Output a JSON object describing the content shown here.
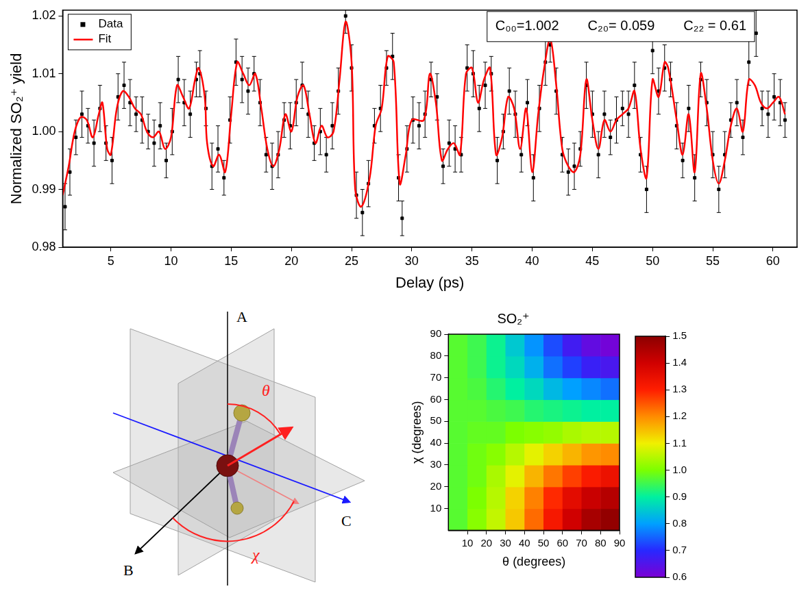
{
  "chart_data": [
    {
      "type": "scatter",
      "x_label": "Delay (ps)",
      "y_label": "Normalized SO₂⁺ yield",
      "xlim": [
        1,
        62
      ],
      "xticks": [
        5,
        10,
        15,
        20,
        25,
        30,
        35,
        40,
        45,
        50,
        55,
        60
      ],
      "ylim": [
        0.98,
        1.021
      ],
      "yticks": [
        0.98,
        0.99,
        {
          "value": 1,
          "label": "1.00"
        },
        1.01,
        1.02
      ],
      "grid": false,
      "legend": "upper left",
      "annotations": [
        "C₀₀=1.002",
        "C₂₀= 0.059",
        "C₂₂ = 0.61"
      ],
      "series": [
        {
          "name": "Data",
          "color": "#000000",
          "marker": "square",
          "x": [
            1.2,
            1.6,
            2.1,
            2.6,
            3.1,
            3.6,
            4.1,
            4.6,
            5.1,
            5.6,
            6.1,
            6.6,
            7.1,
            7.6,
            8.1,
            8.6,
            9.1,
            9.6,
            10.1,
            10.6,
            11.1,
            11.6,
            12.1,
            12.4,
            12.9,
            13.4,
            13.9,
            14.4,
            14.9,
            15.4,
            15.9,
            16.4,
            16.9,
            17.4,
            17.9,
            18.4,
            18.9,
            19.4,
            19.9,
            20.4,
            20.9,
            21.4,
            21.9,
            22.4,
            22.9,
            23.4,
            23.9,
            24.5,
            25.0,
            25.4,
            25.9,
            26.4,
            26.9,
            27.4,
            27.9,
            28.4,
            28.9,
            29.2,
            29.6,
            30.1,
            30.6,
            31.1,
            31.6,
            32.1,
            32.6,
            33.1,
            33.6,
            34.1,
            34.6,
            35.1,
            35.6,
            36.1,
            36.6,
            37.1,
            37.6,
            38.1,
            38.6,
            39.1,
            39.6,
            40.1,
            40.6,
            41.1,
            41.5,
            42.0,
            42.5,
            43.0,
            43.5,
            44.0,
            44.5,
            45.0,
            45.5,
            46.0,
            46.5,
            47.0,
            47.5,
            48.0,
            48.5,
            49.0,
            49.5,
            50.0,
            50.5,
            51.0,
            51.5,
            52.0,
            52.5,
            53.0,
            53.5,
            54.0,
            54.5,
            55.0,
            55.5,
            56.0,
            56.5,
            57.0,
            57.5,
            58.0,
            58.6,
            59.1,
            59.6,
            60.1,
            60.6,
            61.0
          ],
          "values": [
            0.987,
            0.993,
            0.999,
            1.003,
            1.001,
            0.998,
            1.004,
            0.998,
            0.995,
            1.006,
            1.008,
            1.005,
            1.003,
            1.002,
            1.0,
            0.998,
            1.001,
            0.995,
            1.0,
            1.009,
            1.005,
            1.003,
            1.009,
            1.01,
            1.004,
            0.994,
            0.997,
            0.992,
            1.002,
            1.012,
            1.009,
            1.007,
            1.01,
            1.005,
            0.996,
            0.994,
            0.996,
            1.002,
            1.001,
            1.005,
            1.008,
            1.003,
            0.998,
            1.0,
            0.996,
            1.001,
            1.007,
            1.02,
            1.011,
            0.989,
            0.986,
            0.991,
            1.001,
            1.004,
            1.011,
            1.013,
            0.992,
            0.985,
            0.997,
            1.002,
            1.001,
            1.003,
            1.009,
            1.006,
            0.994,
            0.998,
            0.997,
            0.996,
            1.011,
            1.01,
            1.004,
            1.008,
            1.01,
            0.995,
            1.0,
            1.007,
            1.003,
            0.996,
            1.005,
            0.992,
            1.004,
            1.012,
            1.015,
            1.007,
            0.996,
            0.993,
            0.994,
            0.997,
            1.008,
            1.003,
            0.996,
            1.003,
            0.999,
            1.002,
            1.004,
            1.003,
            1.008,
            0.996,
            0.99,
            1.014,
            1.007,
            1.011,
            1.009,
            1.001,
            0.995,
            1.004,
            0.992,
            1.009,
            1.005,
            0.996,
            0.99,
            0.996,
            1.002,
            1.005,
            0.999,
            1.012,
            1.017,
            1.004,
            1.003,
            1.006,
            1.005,
            1.002
          ],
          "errors": [
            0.004,
            0.004,
            0.003,
            0.004,
            0.003,
            0.004,
            0.004,
            0.003,
            0.004,
            0.004,
            0.004,
            0.004,
            0.003,
            0.004,
            0.003,
            0.004,
            0.004,
            0.003,
            0.004,
            0.004,
            0.004,
            0.004,
            0.003,
            0.004,
            0.003,
            0.004,
            0.004,
            0.003,
            0.004,
            0.004,
            0.004,
            0.004,
            0.003,
            0.004,
            0.003,
            0.004,
            0.004,
            0.003,
            0.004,
            0.004,
            0.004,
            0.004,
            0.003,
            0.004,
            0.003,
            0.004,
            0.004,
            0.003,
            0.004,
            0.004,
            0.004,
            0.004,
            0.003,
            0.004,
            0.003,
            0.004,
            0.004,
            0.003,
            0.004,
            0.004,
            0.004,
            0.004,
            0.003,
            0.004,
            0.003,
            0.004,
            0.004,
            0.003,
            0.004,
            0.004,
            0.004,
            0.004,
            0.003,
            0.004,
            0.003,
            0.004,
            0.004,
            0.003,
            0.004,
            0.004,
            0.004,
            0.004,
            0.003,
            0.004,
            0.003,
            0.004,
            0.004,
            0.003,
            0.004,
            0.004,
            0.004,
            0.004,
            0.003,
            0.004,
            0.003,
            0.004,
            0.004,
            0.003,
            0.004,
            0.004,
            0.004,
            0.004,
            0.003,
            0.004,
            0.003,
            0.004,
            0.004,
            0.003,
            0.004,
            0.004,
            0.004,
            0.004,
            0.003,
            0.004,
            0.003,
            0.004,
            0.004,
            0.003,
            0.004,
            0.004,
            0.004,
            0.003
          ]
        },
        {
          "name": "Fit",
          "type": "line",
          "color": "#ff0000",
          "line_style": "solid",
          "x": [
            1,
            1.5,
            2,
            2.5,
            3,
            3.5,
            4,
            4.3,
            4.7,
            5,
            5.5,
            6,
            6.5,
            7,
            7.5,
            8,
            8.5,
            9,
            9.5,
            10,
            10.5,
            11,
            11.5,
            12,
            12.3,
            12.8,
            13,
            13.5,
            14,
            14.5,
            15,
            15.5,
            16,
            16.5,
            17,
            17.5,
            18,
            18.5,
            19,
            19.5,
            20,
            20.5,
            21,
            21.5,
            22,
            22.5,
            23,
            23.5,
            24,
            24.5,
            25,
            25.3,
            25.8,
            26.5,
            27,
            27.5,
            28,
            28.5,
            29,
            29.5,
            30,
            31,
            31.5,
            32,
            32.5,
            33,
            33.5,
            34,
            34.5,
            35,
            35.5,
            36,
            36.5,
            37,
            37.5,
            38,
            38.5,
            39,
            39.5,
            40,
            40.5,
            41,
            41.5,
            42,
            42.5,
            43,
            43.5,
            44,
            44.5,
            45,
            45.5,
            46,
            46.5,
            47,
            47.5,
            48,
            48.5,
            49,
            49.5,
            50,
            50.5,
            51,
            51.3,
            52,
            52.5,
            53,
            53.5,
            54,
            54.5,
            55,
            55.5,
            56,
            56.5,
            57,
            57.5,
            58,
            58.5,
            59,
            59.5,
            60,
            60.5,
            61
          ],
          "values": [
            0.989,
            0.994,
            1.0,
            1.0025,
            1.002,
            0.999,
            1.003,
            1.005,
            0.997,
            0.996,
            1.004,
            1.007,
            1.006,
            1.004,
            1.003,
            1.0,
            0.999,
            1.0,
            0.997,
            0.999,
            1.008,
            1.006,
            1.004,
            1.009,
            1.011,
            1.006,
            0.998,
            0.994,
            0.996,
            0.993,
            1.003,
            1.012,
            1.01,
            1.008,
            1.01,
            1.004,
            0.997,
            0.994,
            0.997,
            1.003,
            1.0,
            1.006,
            1.008,
            1.003,
            0.998,
            1.001,
            0.999,
            1.0,
            1.009,
            1.019,
            1.012,
            0.99,
            0.987,
            0.992,
            1.001,
            1.004,
            1.013,
            1.012,
            0.991,
            0.996,
            1.002,
            1.002,
            1.01,
            1.005,
            0.995,
            0.997,
            0.998,
            0.996,
            1.01,
            1.011,
            1.005,
            1.009,
            1.011,
            0.996,
            0.999,
            1.006,
            1.004,
            0.997,
            1.004,
            0.993,
            1.003,
            1.011,
            1.016,
            1.008,
            0.997,
            0.994,
            0.993,
            0.996,
            1.009,
            1.002,
            0.997,
            1.002,
            1.0,
            1.002,
            1.003,
            1.004,
            1.007,
            0.997,
            0.992,
            1.009,
            1.006,
            1.012,
            1.011,
            1.002,
            0.996,
            1.003,
            0.993,
            1.01,
            1.004,
            0.995,
            0.991,
            0.995,
            1.001,
            1.004,
            1.0,
            1.009,
            1.008,
            1.005,
            1.004,
            1.005,
            1.006,
            1.003
          ]
        }
      ]
    },
    {
      "type": "heatmap",
      "title": "SO₂⁺",
      "x_label": "θ (degrees)",
      "y_label": "χ (degrees)",
      "x": [
        5,
        15,
        25,
        35,
        45,
        55,
        65,
        75,
        85
      ],
      "y": [
        5,
        15,
        25,
        35,
        45,
        55,
        65,
        75,
        85
      ],
      "values": [
        [
          0.97,
          1.01,
          1.06,
          1.14,
          1.23,
          1.32,
          1.4,
          1.46,
          1.49
        ],
        [
          0.97,
          1.0,
          1.05,
          1.13,
          1.21,
          1.29,
          1.36,
          1.41,
          1.44
        ],
        [
          0.97,
          0.99,
          1.04,
          1.09,
          1.16,
          1.22,
          1.27,
          1.31,
          1.34
        ],
        [
          0.97,
          0.99,
          1.01,
          1.05,
          1.09,
          1.13,
          1.16,
          1.19,
          1.2
        ],
        [
          0.97,
          0.98,
          0.98,
          1.0,
          1.01,
          1.02,
          1.04,
          1.05,
          1.05
        ],
        [
          0.97,
          0.97,
          0.96,
          0.95,
          0.93,
          0.92,
          0.91,
          0.9,
          0.9
        ],
        [
          0.97,
          0.96,
          0.93,
          0.9,
          0.87,
          0.83,
          0.8,
          0.78,
          0.76
        ],
        [
          0.97,
          0.95,
          0.91,
          0.87,
          0.82,
          0.76,
          0.72,
          0.68,
          0.66
        ],
        [
          0.97,
          0.95,
          0.91,
          0.85,
          0.79,
          0.73,
          0.67,
          0.63,
          0.61
        ]
      ],
      "xlim": [
        0,
        90
      ],
      "xticks": [
        10,
        20,
        30,
        40,
        50,
        60,
        70,
        80,
        90
      ],
      "ylim": [
        0,
        90
      ],
      "yticks": [
        10,
        20,
        30,
        40,
        50,
        60,
        70,
        80,
        90
      ],
      "grid": false,
      "colorbar": {
        "range": [
          0.6,
          1.5
        ],
        "ticks": [
          0.6,
          0.7,
          0.8,
          0.9,
          {
            "value": 1,
            "label": "1.0"
          },
          1.1,
          1.2,
          1.3,
          1.4,
          1.5
        ],
        "colors": [
          "#7b00d4",
          "#2828ff",
          "#00a0ff",
          "#00f0a0",
          "#7cff00",
          "#f0f000",
          "#ff8c00",
          "#ff1e00",
          "#d00000",
          "#8c0000"
        ]
      }
    }
  ],
  "diagram": {
    "axes": [
      "A",
      "B",
      "C"
    ],
    "angles": [
      "θ",
      "χ"
    ]
  }
}
